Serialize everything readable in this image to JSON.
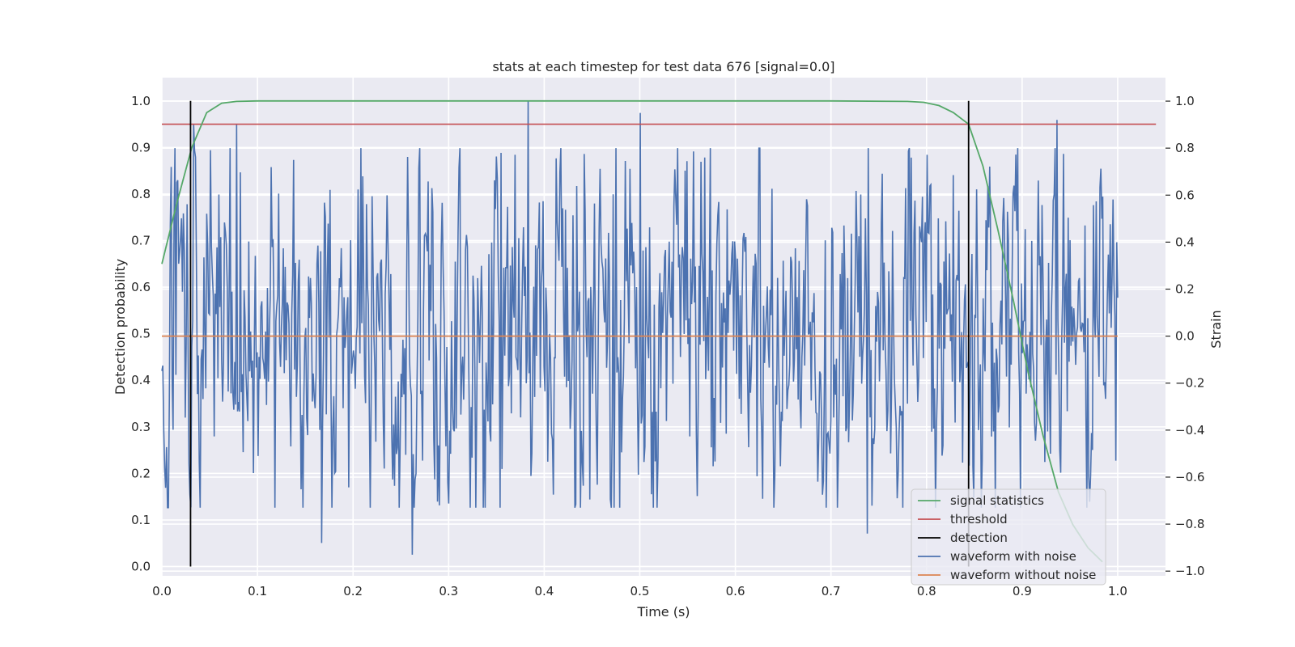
{
  "chart_data": {
    "type": "line",
    "title": "stats at each timestep for test data 676 [signal=0.0]",
    "xlabel": "Time (s)",
    "ylabel": "Detection probability",
    "ylabel_right": "Strain",
    "xlim": [
      0.0,
      1.05
    ],
    "ylim": [
      -0.02,
      1.05
    ],
    "ylim_right": [
      -1.02,
      1.1
    ],
    "xticks": [
      "0.0",
      "0.1",
      "0.2",
      "0.3",
      "0.4",
      "0.5",
      "0.6",
      "0.7",
      "0.8",
      "0.9",
      "1.0"
    ],
    "yticks": [
      "0.0",
      "0.1",
      "0.2",
      "0.3",
      "0.4",
      "0.5",
      "0.6",
      "0.7",
      "0.8",
      "0.9",
      "1.0"
    ],
    "yticks_right": [
      "−1.0",
      "−0.8",
      "−0.6",
      "−0.4",
      "−0.2",
      "0.0",
      "0.2",
      "0.4",
      "0.6",
      "0.8",
      "1.0"
    ],
    "grid": true,
    "legend_position": "bottom-right",
    "colors": {
      "background": "#eaeaf2",
      "grid": "#ffffff",
      "signal": "#55a868",
      "threshold": "#c44e52",
      "detection": "#000000",
      "noisy": "#4c72b0",
      "clean": "#dd8452"
    },
    "series": [
      {
        "name": "signal statistics",
        "axis": "left",
        "x": [
          0.0,
          0.0156,
          0.0313,
          0.0469,
          0.0625,
          0.0781,
          0.1,
          0.3,
          0.5,
          0.7,
          0.78,
          0.797,
          0.813,
          0.828,
          0.844,
          0.859,
          0.875,
          0.891,
          0.906,
          0.922,
          0.938,
          0.953,
          0.969,
          0.984
        ],
        "values": [
          0.65,
          0.78,
          0.9,
          0.975,
          0.995,
          0.999,
          1.0,
          1.0,
          1.0,
          1.0,
          0.999,
          0.997,
          0.99,
          0.975,
          0.95,
          0.86,
          0.72,
          0.57,
          0.42,
          0.28,
          0.16,
          0.09,
          0.04,
          0.01
        ]
      },
      {
        "name": "threshold",
        "axis": "left",
        "x": [
          0.0,
          1.04
        ],
        "values": [
          0.95,
          0.95
        ]
      },
      {
        "name": "detection",
        "axis": "left",
        "x": [
          0.03,
          0.844
        ],
        "ymin": 0.0,
        "ymax": 1.0
      },
      {
        "name": "waveform with noise",
        "axis": "right",
        "x_range": [
          0.0,
          1.0
        ],
        "n_points": 1024,
        "amplitude_range": [
          -0.93,
          1.0
        ],
        "peaks": [
          {
            "x": 0.01,
            "y": 0.72
          },
          {
            "x": 0.033,
            "y": 0.9
          },
          {
            "x": 0.078,
            "y": 0.9
          },
          {
            "x": 0.138,
            "y": 0.75
          },
          {
            "x": 0.167,
            "y": -0.88
          },
          {
            "x": 0.262,
            "y": -0.93
          },
          {
            "x": 0.29,
            "y": -0.72
          },
          {
            "x": 0.355,
            "y": 0.78
          },
          {
            "x": 0.383,
            "y": 1.0
          },
          {
            "x": 0.5,
            "y": 0.95
          },
          {
            "x": 0.568,
            "y": 0.76
          },
          {
            "x": 0.738,
            "y": -0.84
          },
          {
            "x": 0.936,
            "y": 0.92
          },
          {
            "x": 0.998,
            "y": -0.53
          }
        ]
      },
      {
        "name": "waveform without noise",
        "axis": "right",
        "x": [
          0.0,
          1.0
        ],
        "values": [
          0.0,
          0.0
        ]
      }
    ]
  }
}
